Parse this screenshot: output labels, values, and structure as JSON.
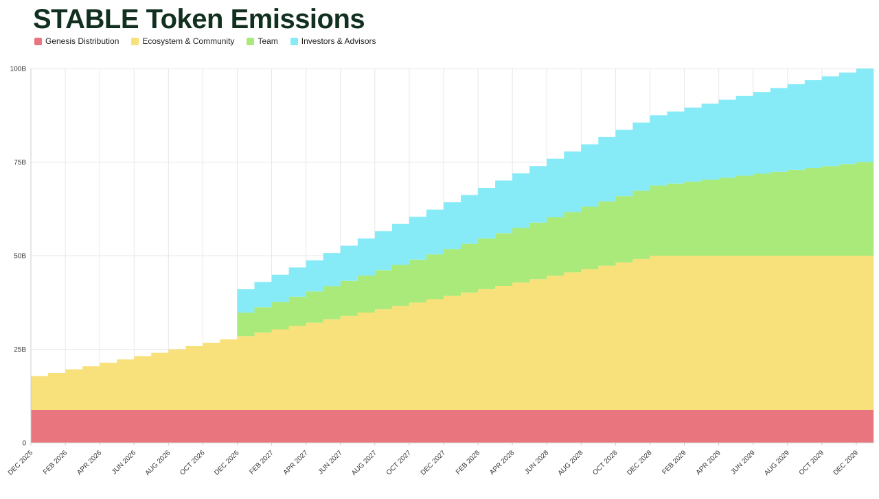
{
  "page": {
    "title": "STABLE Token Emissions"
  },
  "colors": {
    "title": "#12301f",
    "grid": "#e7e7e7",
    "axis": "#cccccc",
    "tick_text": "#333333",
    "genesis": "#e9757e",
    "ecosystem": "#f8e17b",
    "team": "#a9ea7a",
    "investors": "#86ebf6"
  },
  "legend": [
    {
      "label": "Genesis Distribution",
      "color": "#e9757e"
    },
    {
      "label": "Ecosystem & Community",
      "color": "#f8e17b"
    },
    {
      "label": "Team",
      "color": "#a9ea7a"
    },
    {
      "label": "Investors & Advisors",
      "color": "#86ebf6"
    }
  ],
  "chart_data": {
    "type": "area",
    "stacked": true,
    "step": true,
    "title": "STABLE Token Emissions",
    "xlabel": "",
    "ylabel": "",
    "ylim": [
      0,
      100
    ],
    "legend_position": "top-left",
    "grid": true,
    "x_tick_every": 2,
    "yticks": [
      {
        "v": 0,
        "label": "0"
      },
      {
        "v": 25,
        "label": "25B"
      },
      {
        "v": 50,
        "label": "50B"
      },
      {
        "v": 75,
        "label": "75B"
      },
      {
        "v": 100,
        "label": "100B"
      }
    ],
    "x": [
      "DEC 2025",
      "JAN 2026",
      "FEB 2026",
      "MAR 2026",
      "APR 2026",
      "MAY 2026",
      "JUN 2026",
      "JUL 2026",
      "AUG 2026",
      "SEP 2026",
      "OCT 2026",
      "NOV 2026",
      "DEC 2026",
      "JAN 2027",
      "FEB 2027",
      "MAR 2027",
      "APR 2027",
      "MAY 2027",
      "JUN 2027",
      "JUL 2027",
      "AUG 2027",
      "SEP 2027",
      "OCT 2027",
      "NOV 2027",
      "DEC 2027",
      "JAN 2028",
      "FEB 2028",
      "MAR 2028",
      "APR 2028",
      "MAY 2028",
      "JUN 2028",
      "JUL 2028",
      "AUG 2028",
      "SEP 2028",
      "OCT 2028",
      "NOV 2028",
      "DEC 2028",
      "JAN 2029",
      "FEB 2029",
      "MAR 2029",
      "APR 2029",
      "MAY 2029",
      "JUN 2029",
      "JUL 2029",
      "AUG 2029",
      "SEP 2029",
      "OCT 2029",
      "NOV 2029",
      "DEC 2029"
    ],
    "series": [
      {
        "name": "Genesis Distribution",
        "color": "#e9757e",
        "values": [
          8.8,
          8.8,
          8.8,
          8.8,
          8.8,
          8.8,
          8.8,
          8.8,
          8.8,
          8.8,
          8.8,
          8.8,
          8.8,
          8.8,
          8.8,
          8.8,
          8.8,
          8.8,
          8.8,
          8.8,
          8.8,
          8.8,
          8.8,
          8.8,
          8.8,
          8.8,
          8.8,
          8.8,
          8.8,
          8.8,
          8.8,
          8.8,
          8.8,
          8.8,
          8.8,
          8.8,
          8.8,
          8.8,
          8.8,
          8.8,
          8.8,
          8.8,
          8.8,
          8.8,
          8.8,
          8.8,
          8.8,
          8.8,
          8.8
        ]
      },
      {
        "name": "Ecosystem & Community",
        "color": "#f8e17b",
        "values": [
          9,
          9.89,
          10.79,
          11.68,
          12.58,
          13.47,
          14.37,
          15.26,
          16.16,
          17.05,
          17.94,
          18.84,
          19.73,
          20.63,
          21.52,
          22.42,
          23.31,
          24.21,
          25.1,
          25.99,
          26.89,
          27.78,
          28.68,
          29.57,
          30.47,
          31.36,
          32.26,
          33.15,
          34.04,
          34.94,
          35.83,
          36.73,
          37.62,
          38.52,
          39.41,
          40.31,
          41.2,
          41.2,
          41.2,
          41.2,
          41.2,
          41.2,
          41.2,
          41.2,
          41.2,
          41.2,
          41.2,
          41.2,
          41.2
        ]
      },
      {
        "name": "Team",
        "color": "#a9ea7a",
        "values": [
          0,
          0,
          0,
          0,
          0,
          0,
          0,
          0,
          0,
          0,
          0,
          0,
          6.25,
          6.77,
          7.29,
          7.81,
          8.33,
          8.85,
          9.38,
          9.9,
          10.42,
          10.94,
          11.46,
          11.98,
          12.5,
          13.02,
          13.54,
          14.06,
          14.58,
          15.1,
          15.63,
          16.15,
          16.67,
          17.19,
          17.71,
          18.23,
          18.75,
          19.27,
          19.79,
          20.31,
          20.83,
          21.35,
          21.88,
          22.4,
          22.92,
          23.44,
          23.96,
          24.48,
          25
        ]
      },
      {
        "name": "Investors & Advisors",
        "color": "#86ebf6",
        "values": [
          0,
          0,
          0,
          0,
          0,
          0,
          0,
          0,
          0,
          0,
          0,
          0,
          6.25,
          6.77,
          7.29,
          7.81,
          8.33,
          8.85,
          9.38,
          9.9,
          10.42,
          10.94,
          11.46,
          11.98,
          12.5,
          13.02,
          13.54,
          14.06,
          14.58,
          15.1,
          15.63,
          16.15,
          16.67,
          17.19,
          17.71,
          18.23,
          18.75,
          19.27,
          19.79,
          20.31,
          20.83,
          21.35,
          21.88,
          22.4,
          22.92,
          23.44,
          23.96,
          24.48,
          25
        ]
      }
    ]
  }
}
